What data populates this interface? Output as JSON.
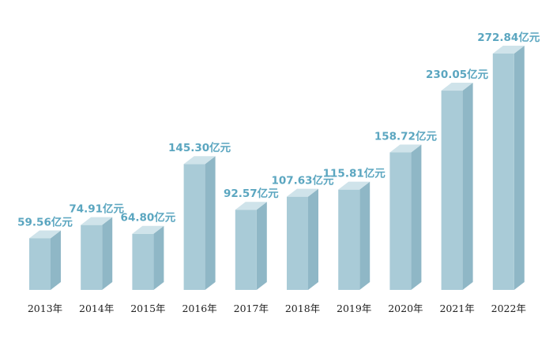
{
  "colors": {
    "bar_front": "#a9cbd7",
    "bar_side": "#8fb7c6",
    "bar_top": "#cfe3ea",
    "value_label": "#5ba6c0",
    "tick_label": "#222222",
    "background": "#ffffff"
  },
  "chart_data": {
    "type": "bar",
    "style": "3d-column",
    "title": "",
    "xlabel": "",
    "ylabel": "",
    "categories": [
      "2013年",
      "2014年",
      "2015年",
      "2016年",
      "2017年",
      "2018年",
      "2019年",
      "2020年",
      "2021年",
      "2022年"
    ],
    "values": [
      59.56,
      74.91,
      64.8,
      145.3,
      92.57,
      107.63,
      115.81,
      158.72,
      230.05,
      272.84
    ],
    "value_labels": [
      "59.56亿元",
      "74.91亿元",
      "64.80亿元",
      "145.30亿元",
      "92.57亿元",
      "107.63亿元",
      "115.81亿元",
      "158.72亿元",
      "230.05亿元",
      "272.84亿元"
    ],
    "unit": "亿元",
    "ylim": [
      0,
      290
    ],
    "grid": false,
    "legend": "none"
  }
}
